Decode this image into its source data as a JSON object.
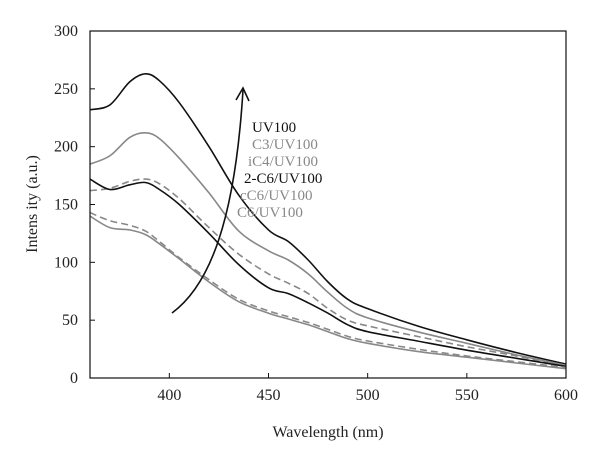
{
  "chart_data": {
    "type": "line",
    "title": "",
    "xlabel": "Wavelength (nm)",
    "ylabel": "Intens ity (a.u.)",
    "xlim": [
      360,
      600
    ],
    "ylim": [
      0,
      300
    ],
    "xticks": [
      400,
      450,
      500,
      550,
      600
    ],
    "yticks": [
      0,
      50,
      100,
      150,
      200,
      250,
      300
    ],
    "grid": false,
    "legend_position": "center",
    "arrow_annotation": "curved arrow pointing upward through the series labels",
    "series": [
      {
        "name": "UV100",
        "color": "#111111",
        "dash": "solid",
        "points": [
          [
            360,
            232
          ],
          [
            370,
            236
          ],
          [
            380,
            256
          ],
          [
            388,
            263
          ],
          [
            395,
            257
          ],
          [
            405,
            238
          ],
          [
            420,
            200
          ],
          [
            435,
            158
          ],
          [
            450,
            128
          ],
          [
            460,
            118
          ],
          [
            470,
            102
          ],
          [
            480,
            83
          ],
          [
            490,
            68
          ],
          [
            500,
            60
          ],
          [
            525,
            45
          ],
          [
            550,
            33
          ],
          [
            575,
            22
          ],
          [
            600,
            12
          ]
        ]
      },
      {
        "name": "C3/UV100",
        "color": "#888888",
        "dash": "solid",
        "points": [
          [
            360,
            185
          ],
          [
            370,
            192
          ],
          [
            380,
            208
          ],
          [
            388,
            212
          ],
          [
            395,
            207
          ],
          [
            405,
            190
          ],
          [
            420,
            160
          ],
          [
            435,
            127
          ],
          [
            450,
            110
          ],
          [
            460,
            102
          ],
          [
            470,
            90
          ],
          [
            480,
            74
          ],
          [
            490,
            60
          ],
          [
            500,
            52
          ],
          [
            525,
            40
          ],
          [
            550,
            30
          ],
          [
            575,
            20
          ],
          [
            600,
            11
          ]
        ]
      },
      {
        "name": "iC4/UV100",
        "color": "#888888",
        "dash": "dashed",
        "points": [
          [
            360,
            162
          ],
          [
            370,
            164
          ],
          [
            380,
            170
          ],
          [
            388,
            172
          ],
          [
            395,
            168
          ],
          [
            405,
            155
          ],
          [
            420,
            130
          ],
          [
            435,
            107
          ],
          [
            450,
            90
          ],
          [
            460,
            82
          ],
          [
            470,
            73
          ],
          [
            480,
            60
          ],
          [
            490,
            50
          ],
          [
            500,
            45
          ],
          [
            525,
            36
          ],
          [
            550,
            27
          ],
          [
            575,
            19
          ],
          [
            600,
            10
          ]
        ]
      },
      {
        "name": "2-C6/UV100",
        "color": "#111111",
        "dash": "solid",
        "points": [
          [
            360,
            172
          ],
          [
            370,
            163
          ],
          [
            380,
            167
          ],
          [
            388,
            169
          ],
          [
            395,
            163
          ],
          [
            405,
            150
          ],
          [
            420,
            125
          ],
          [
            435,
            98
          ],
          [
            450,
            78
          ],
          [
            460,
            73
          ],
          [
            470,
            65
          ],
          [
            480,
            56
          ],
          [
            490,
            46
          ],
          [
            500,
            40
          ],
          [
            525,
            32
          ],
          [
            550,
            24
          ],
          [
            575,
            17
          ],
          [
            600,
            10
          ]
        ]
      },
      {
        "name": "cC6/UV100",
        "color": "#888888",
        "dash": "dashed",
        "points": [
          [
            360,
            143
          ],
          [
            370,
            136
          ],
          [
            380,
            132
          ],
          [
            388,
            127
          ],
          [
            395,
            118
          ],
          [
            405,
            104
          ],
          [
            420,
            85
          ],
          [
            435,
            68
          ],
          [
            450,
            58
          ],
          [
            460,
            53
          ],
          [
            470,
            48
          ],
          [
            480,
            42
          ],
          [
            490,
            36
          ],
          [
            500,
            32
          ],
          [
            525,
            25
          ],
          [
            550,
            19
          ],
          [
            575,
            14
          ],
          [
            600,
            9
          ]
        ]
      },
      {
        "name": "C6/UV100",
        "color": "#888888",
        "dash": "solid",
        "points": [
          [
            360,
            140
          ],
          [
            370,
            130
          ],
          [
            380,
            128
          ],
          [
            388,
            124
          ],
          [
            395,
            116
          ],
          [
            405,
            103
          ],
          [
            420,
            83
          ],
          [
            435,
            66
          ],
          [
            450,
            56
          ],
          [
            460,
            51
          ],
          [
            470,
            46
          ],
          [
            480,
            40
          ],
          [
            490,
            34
          ],
          [
            500,
            30
          ],
          [
            525,
            23
          ],
          [
            550,
            18
          ],
          [
            575,
            13
          ],
          [
            600,
            8
          ]
        ]
      }
    ]
  }
}
